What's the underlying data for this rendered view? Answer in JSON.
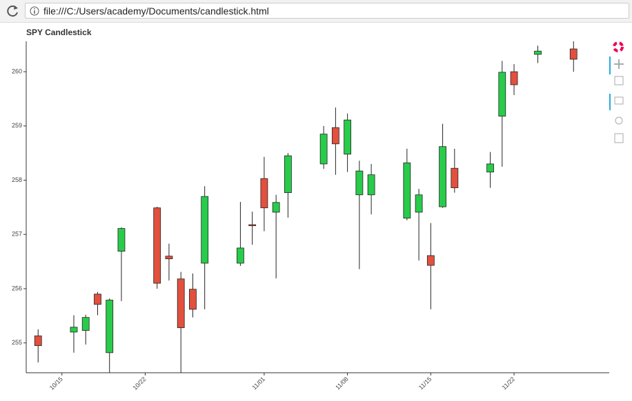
{
  "browser": {
    "url": "file:///C:/Users/academy/Documents/candlestick.html"
  },
  "chart_data": {
    "type": "candlestick",
    "title": "SPY Candlestick",
    "x": [
      "10/13",
      "10/16",
      "10/17",
      "10/18",
      "10/19",
      "10/20",
      "10/23",
      "10/24",
      "10/25",
      "10/26",
      "10/27",
      "10/30",
      "10/31",
      "11/01",
      "11/02",
      "11/03",
      "11/06",
      "11/07",
      "11/08",
      "11/09",
      "11/10",
      "11/13",
      "11/14",
      "11/15",
      "11/16",
      "11/17",
      "11/20",
      "11/21",
      "11/22",
      "11/24",
      "11/27"
    ],
    "open": [
      255.13,
      255.2,
      255.23,
      255.9,
      254.82,
      256.69,
      257.49,
      256.6,
      256.18,
      255.99,
      256.47,
      256.47,
      257.18,
      258.03,
      257.41,
      257.77,
      258.3,
      258.97,
      258.48,
      257.73,
      257.73,
      257.3,
      257.41,
      256.61,
      257.51,
      258.22,
      258.15,
      259.18,
      260.0,
      260.32,
      260.42
    ],
    "high": [
      255.25,
      255.51,
      255.52,
      255.94,
      255.82,
      257.13,
      257.51,
      256.83,
      256.31,
      256.28,
      257.89,
      257.6,
      257.42,
      258.43,
      257.73,
      258.5,
      259.0,
      259.34,
      259.23,
      258.36,
      258.3,
      258.58,
      257.84,
      257.21,
      259.04,
      258.58,
      258.52,
      260.2,
      260.14,
      260.48,
      260.56
    ],
    "low": [
      254.64,
      254.82,
      254.97,
      255.51,
      254.45,
      255.77,
      256.0,
      256.15,
      254.45,
      255.47,
      255.62,
      256.42,
      256.81,
      257.06,
      256.19,
      257.31,
      258.21,
      258.1,
      258.15,
      256.36,
      257.37,
      257.26,
      256.52,
      255.62,
      257.49,
      257.77,
      257.86,
      258.25,
      259.57,
      260.16,
      260.0
    ],
    "close": [
      254.95,
      255.29,
      255.47,
      255.71,
      255.79,
      257.11,
      256.1,
      256.55,
      255.28,
      255.62,
      257.7,
      256.75,
      257.16,
      257.49,
      257.59,
      258.45,
      258.85,
      258.67,
      259.11,
      258.17,
      258.1,
      258.32,
      257.73,
      256.43,
      258.62,
      257.86,
      258.3,
      259.99,
      259.76,
      260.38,
      260.23
    ],
    "increasing_color": "#28cc4a",
    "decreasing_color": "#e2503e",
    "xlim": [
      "10/12",
      "11/30"
    ],
    "xticks": [
      "10/15",
      "10/22",
      "11/01",
      "11/08",
      "11/15",
      "11/22"
    ],
    "ylim": [
      254.45,
      260.56
    ],
    "yticks": [
      255,
      256,
      257,
      258,
      259,
      260
    ]
  }
}
